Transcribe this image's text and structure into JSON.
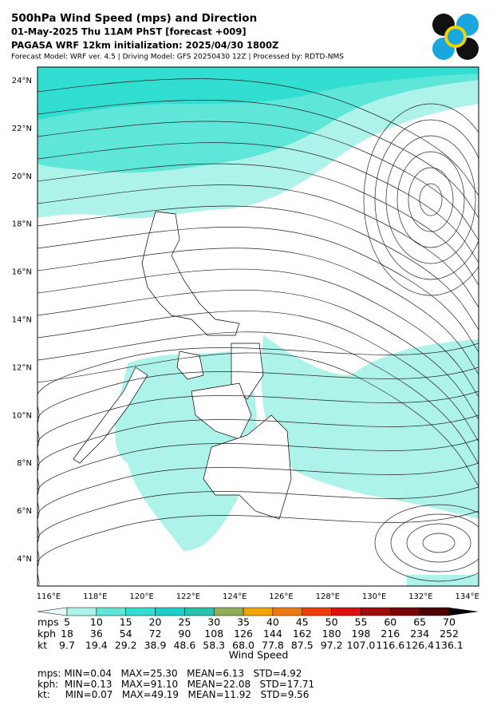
{
  "header": {
    "title": "500hPa Wind Speed (mps) and Direction",
    "subtitle": "01-May-2025 Thu 11AM PhST [forecast +009]",
    "initialization": "PAGASA WRF 12km initialization: 2025/04/30 1800Z",
    "credits": "Forecast Model: WRF ver. 4.5 | Driving Model: GFS 20250430 12Z | Processed by: RDTD-NMS"
  },
  "map": {
    "lat_labels": [
      "24°N",
      "22°N",
      "20°N",
      "18°N",
      "16°N",
      "14°N",
      "12°N",
      "10°N",
      "8°N",
      "6°N",
      "4°N"
    ],
    "lon_labels": [
      "116°E",
      "118°E",
      "120°E",
      "122°E",
      "124°E",
      "126°E",
      "128°E",
      "130°E",
      "132°E",
      "134°E"
    ]
  },
  "colorbar": {
    "label": "Wind Speed",
    "rows": [
      {
        "unit": "mps",
        "labels": [
          "5",
          "10",
          "15",
          "20",
          "25",
          "30",
          "35",
          "40",
          "45",
          "50",
          "55",
          "60",
          "65",
          "70"
        ]
      },
      {
        "unit": "kph",
        "labels": [
          "18",
          "36",
          "54",
          "72",
          "90",
          "108",
          "126",
          "144",
          "162",
          "180",
          "198",
          "216",
          "234",
          "252"
        ]
      },
      {
        "unit": "kt",
        "labels": [
          "9.7",
          "19.4",
          "29.2",
          "38.9",
          "48.6",
          "58.3",
          "68.0",
          "77.8",
          "87.5",
          "97.2",
          "107.0",
          "116.6",
          "126.4",
          "136.1"
        ]
      }
    ]
  },
  "stats": [
    "mps: MIN=0.04   MAX=25.30   MEAN=6.13   STD=4.92",
    "kph:  MIN=0.13   MAX=91.10   MEAN=22.08   STD=17.71",
    "kt:     MIN=0.07   MAX=49.19   MEAN=11.92   STD=9.56"
  ]
}
